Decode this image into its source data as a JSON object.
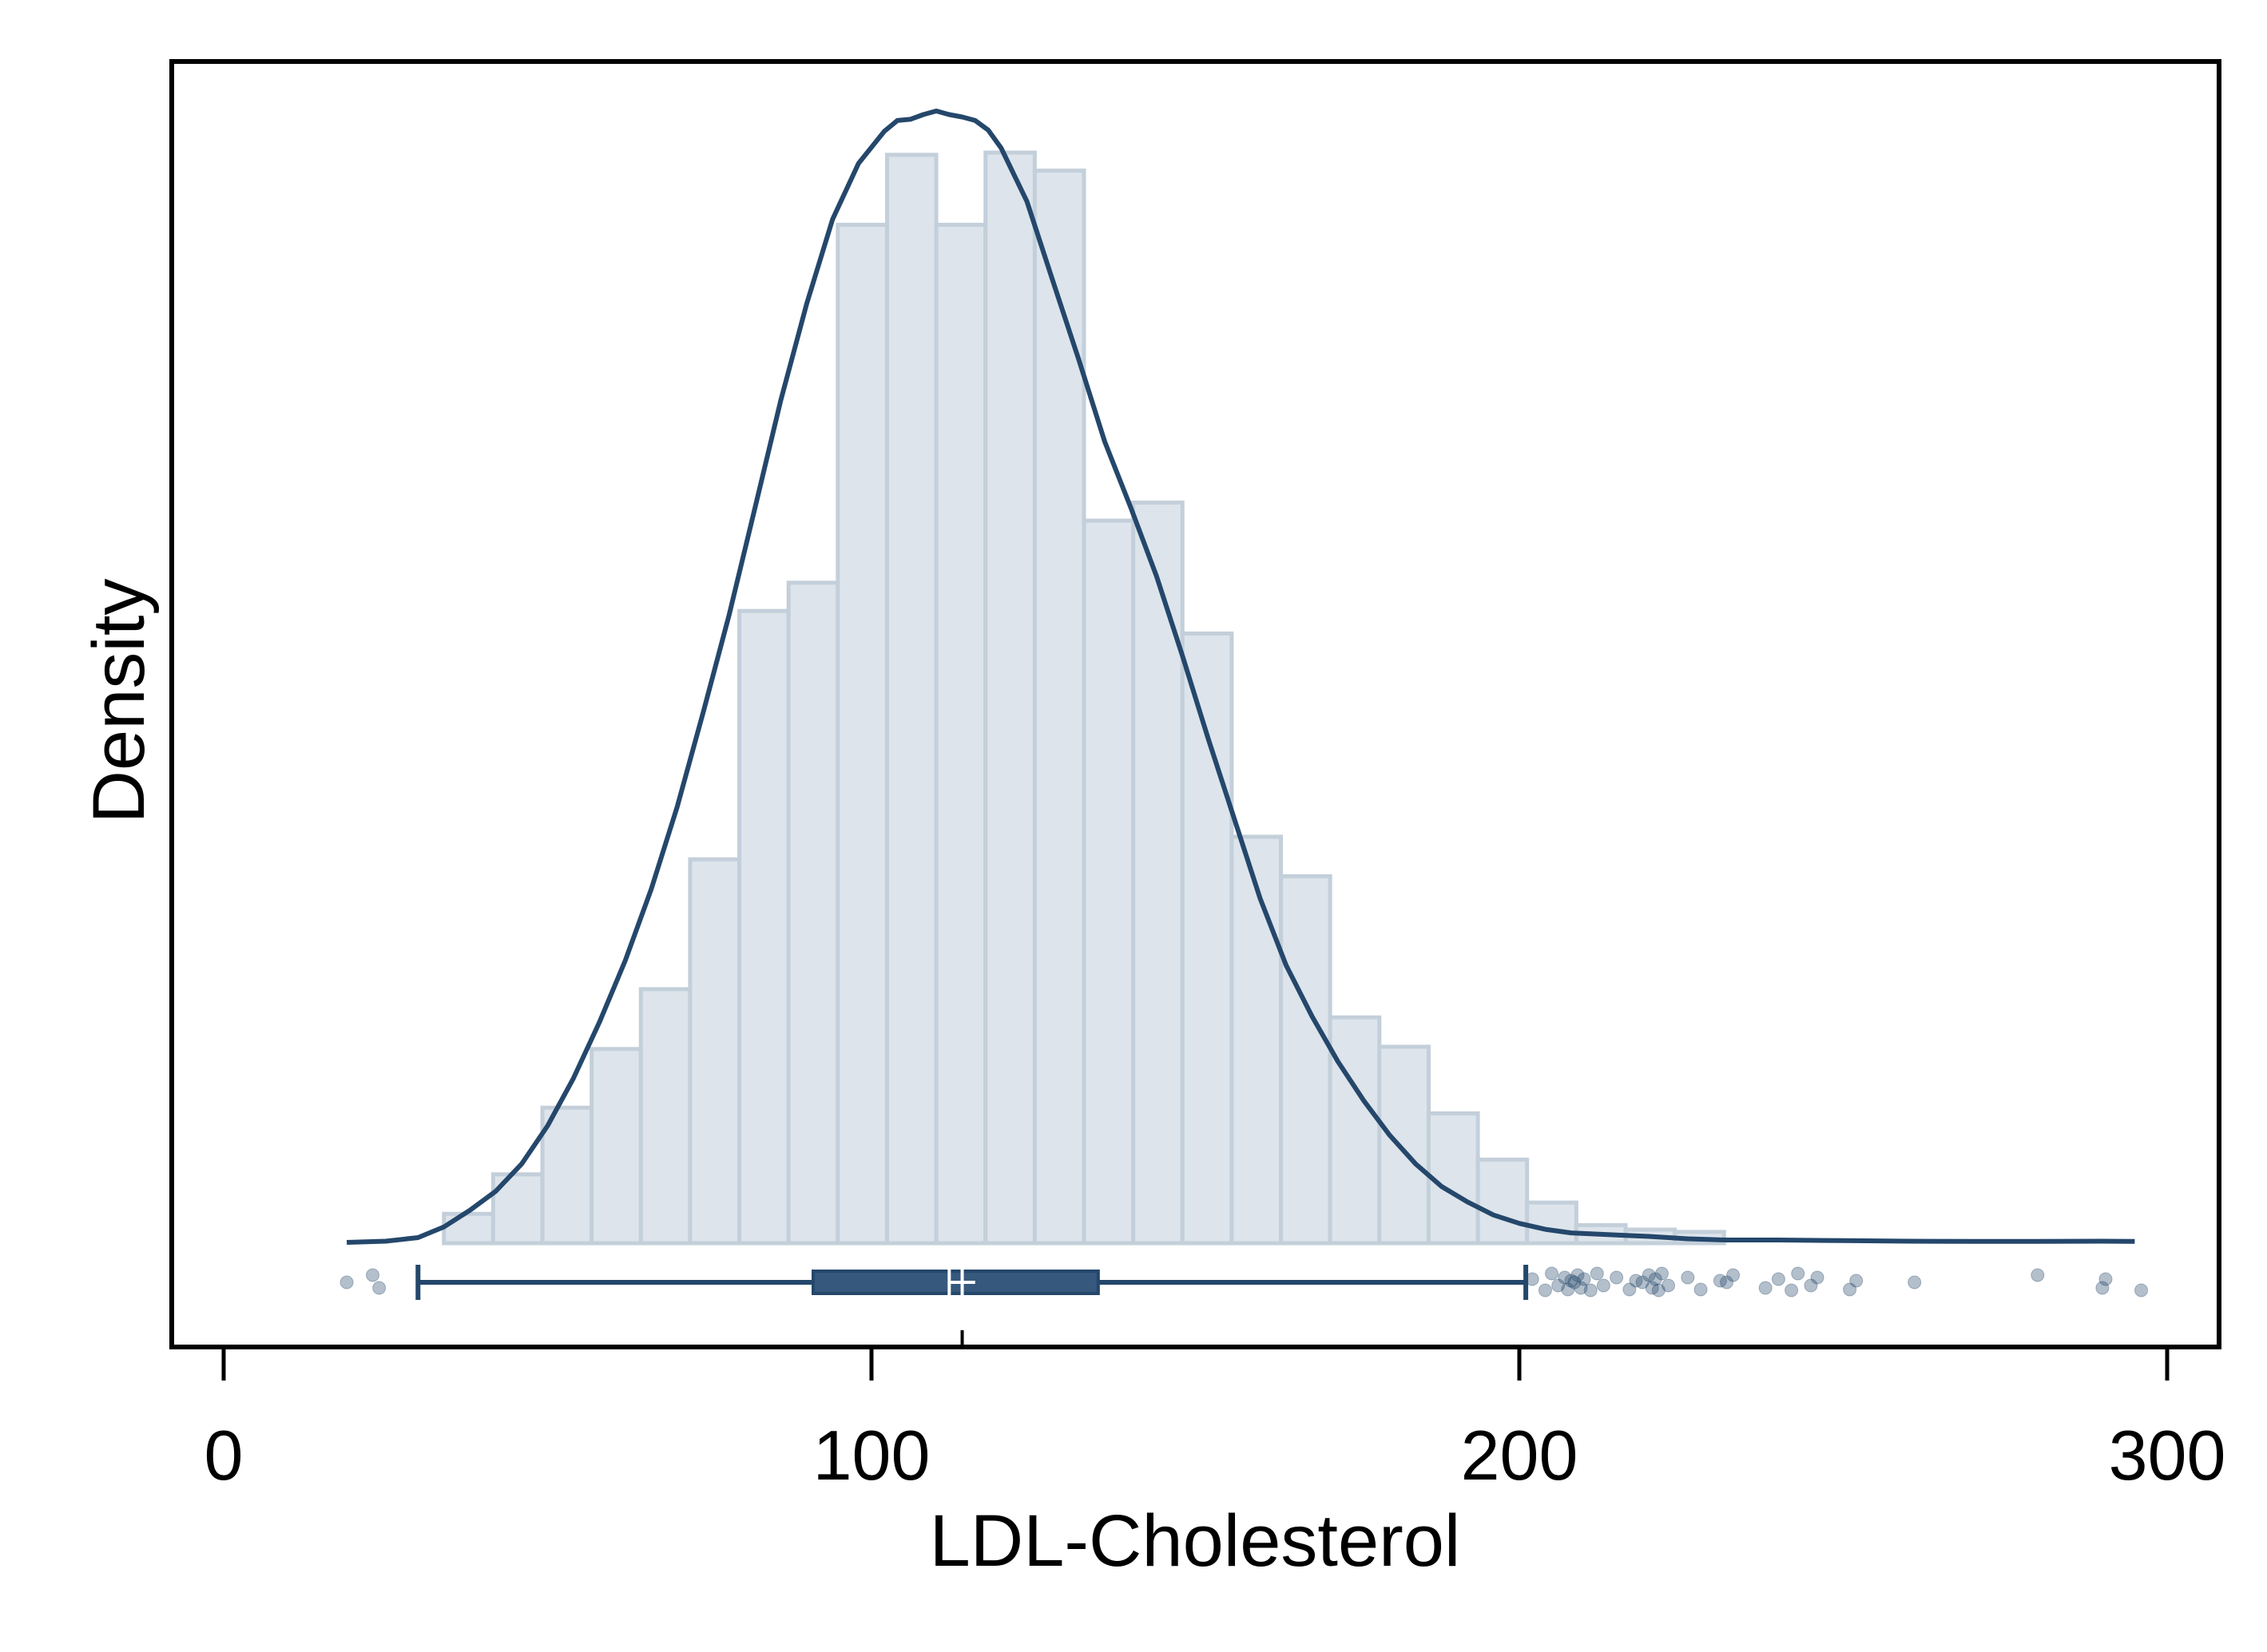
{
  "chart_data": {
    "type": "histogram",
    "title": "",
    "xlabel": "LDL-Cholesterol",
    "ylabel": "Density",
    "xlim": [
      -8,
      308
    ],
    "ylim": [
      0,
      1
    ],
    "x_ticks": [
      0,
      100,
      200,
      300
    ],
    "x_tick_labels": [
      "0",
      "100",
      "200",
      "300"
    ],
    "y_ticks_shown": false,
    "grid": false,
    "legend": "none",
    "colors": {
      "bar_fill": "#dde4eb",
      "bar_edge": "#c3cfda",
      "line": "#24476b",
      "box_fill": "#35587c",
      "median_mark": "#ffffff",
      "outlier": "#24476b",
      "frame": "#000000"
    },
    "histogram": {
      "bin_width": 7.6,
      "bin_edges": [
        34,
        41.6,
        49.2,
        56.8,
        64.4,
        72,
        79.6,
        87.2,
        94.8,
        102.4,
        110,
        117.6,
        125.2,
        132.8,
        140.4,
        148,
        155.6,
        163.2,
        170.8,
        178.4,
        186,
        193.6,
        201.2,
        208.8,
        216.4,
        224,
        231.6
      ],
      "relative_heights": [
        0.026,
        0.061,
        0.12,
        0.172,
        0.225,
        0.34,
        0.56,
        0.585,
        0.902,
        0.964,
        0.902,
        0.966,
        0.95,
        0.64,
        0.656,
        0.54,
        0.36,
        0.325,
        0.2,
        0.174,
        0.115,
        0.074,
        0.036,
        0.016,
        0.012,
        0.01
      ]
    },
    "density_curve": {
      "x": [
        19,
        25,
        30,
        34,
        38,
        42,
        46,
        50,
        54,
        58,
        62,
        66,
        70,
        74,
        78,
        82,
        86,
        90,
        94,
        98,
        102,
        104,
        106,
        108,
        110,
        112,
        114,
        116,
        118,
        120,
        124,
        128,
        132,
        136,
        140,
        144,
        148,
        152,
        156,
        160,
        164,
        168,
        172,
        176,
        180,
        184,
        188,
        192,
        196,
        200,
        204,
        208,
        212,
        216,
        220,
        226,
        232,
        240,
        250,
        260,
        270,
        280,
        290,
        295
      ],
      "y": [
        0.0,
        0.001,
        0.004,
        0.013,
        0.027,
        0.043,
        0.066,
        0.098,
        0.138,
        0.185,
        0.237,
        0.297,
        0.366,
        0.445,
        0.527,
        0.617,
        0.708,
        0.789,
        0.86,
        0.907,
        0.934,
        0.943,
        0.944,
        0.948,
        0.951,
        0.948,
        0.946,
        0.943,
        0.935,
        0.92,
        0.875,
        0.808,
        0.742,
        0.673,
        0.618,
        0.56,
        0.493,
        0.423,
        0.356,
        0.289,
        0.233,
        0.19,
        0.152,
        0.119,
        0.09,
        0.066,
        0.047,
        0.034,
        0.023,
        0.016,
        0.011,
        0.008,
        0.007,
        0.006,
        0.005,
        0.003,
        0.002,
        0.002,
        0.0015,
        0.001,
        0.0008,
        0.0008,
        0.001,
        0.0008
      ],
      "peak_x": 109
    },
    "boxplot": {
      "whisker_low": 30,
      "q1": 91,
      "median": 114,
      "median_notch_low": 112,
      "median_notch_high": 114,
      "q3": 135,
      "whisker_high": 201,
      "extra_tick_x": 114
    },
    "outliers": [
      19,
      23,
      24,
      202,
      204,
      205,
      206,
      207,
      207.5,
      208,
      208.5,
      209,
      209.5,
      210,
      211,
      212,
      213,
      215,
      217,
      218,
      219,
      220,
      220.5,
      221,
      221.5,
      222,
      223,
      226,
      228,
      231,
      232,
      233,
      238,
      240,
      242,
      243,
      245,
      246,
      251,
      252,
      261,
      280,
      290,
      290.5,
      296
    ]
  }
}
